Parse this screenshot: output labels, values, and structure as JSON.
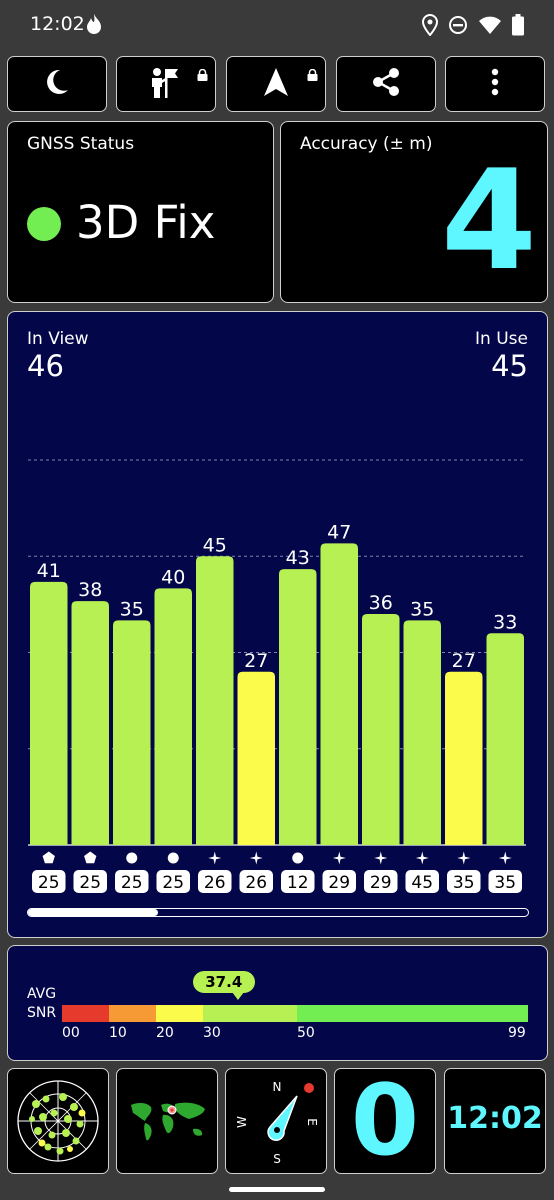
{
  "status_bar": {
    "time": "12:02"
  },
  "toolbar": {
    "buttons": [
      {
        "icon": "night-mode-icon",
        "locked": false
      },
      {
        "icon": "person-flag-icon",
        "locked": true
      },
      {
        "icon": "navigation-arrow-icon",
        "locked": true
      },
      {
        "icon": "share-icon",
        "locked": false
      },
      {
        "icon": "more-vert-icon",
        "locked": false
      }
    ]
  },
  "gnss_status": {
    "title": "GNSS Status",
    "value": "3D Fix",
    "dot_color": "#72ee52"
  },
  "accuracy": {
    "title": "Accuracy (± m)",
    "value": "4",
    "color": "#5ef7ff"
  },
  "satellites": {
    "in_view_label": "In View",
    "in_view": "46",
    "in_use_label": "In Use",
    "in_use": "45",
    "scroll_fraction": 0.26
  },
  "chart_data": {
    "type": "bar",
    "categories": [
      "25",
      "25",
      "25",
      "25",
      "26",
      "26",
      "12",
      "29",
      "29",
      "45",
      "35",
      "35"
    ],
    "values": [
      41,
      38,
      35,
      40,
      45,
      27,
      43,
      47,
      36,
      35,
      27,
      33
    ],
    "markers": [
      "pentagon",
      "pentagon",
      "circle",
      "circle",
      "star",
      "star",
      "circle",
      "star",
      "star",
      "star",
      "star",
      "star"
    ],
    "colors": [
      "#b7f053",
      "#b7f053",
      "#b7f053",
      "#b7f053",
      "#b7f053",
      "#fbfb4c",
      "#b7f053",
      "#b7f053",
      "#b7f053",
      "#b7f053",
      "#fbfb4c",
      "#b7f053"
    ],
    "ylim": [
      0,
      60
    ],
    "grid": true
  },
  "snr": {
    "label_line1": "AVG",
    "label_line2": "SNR",
    "avg": "37.4",
    "avg_value": 37.4,
    "scale": [
      {
        "from": 0,
        "to": 10,
        "color": "#e53a2c"
      },
      {
        "from": 10,
        "to": 20,
        "color": "#f59a34"
      },
      {
        "from": 20,
        "to": 30,
        "color": "#fbfb4c"
      },
      {
        "from": 30,
        "to": 50,
        "color": "#b7f053"
      },
      {
        "from": 50,
        "to": 99,
        "color": "#72ee52"
      }
    ],
    "ticks": [
      "00",
      "10",
      "20",
      "30",
      "50",
      "99"
    ]
  },
  "compass": {
    "n": "N",
    "e": "E",
    "s": "S",
    "w": "W"
  },
  "speed": {
    "value": "0"
  },
  "clock": {
    "value": "12:02"
  }
}
